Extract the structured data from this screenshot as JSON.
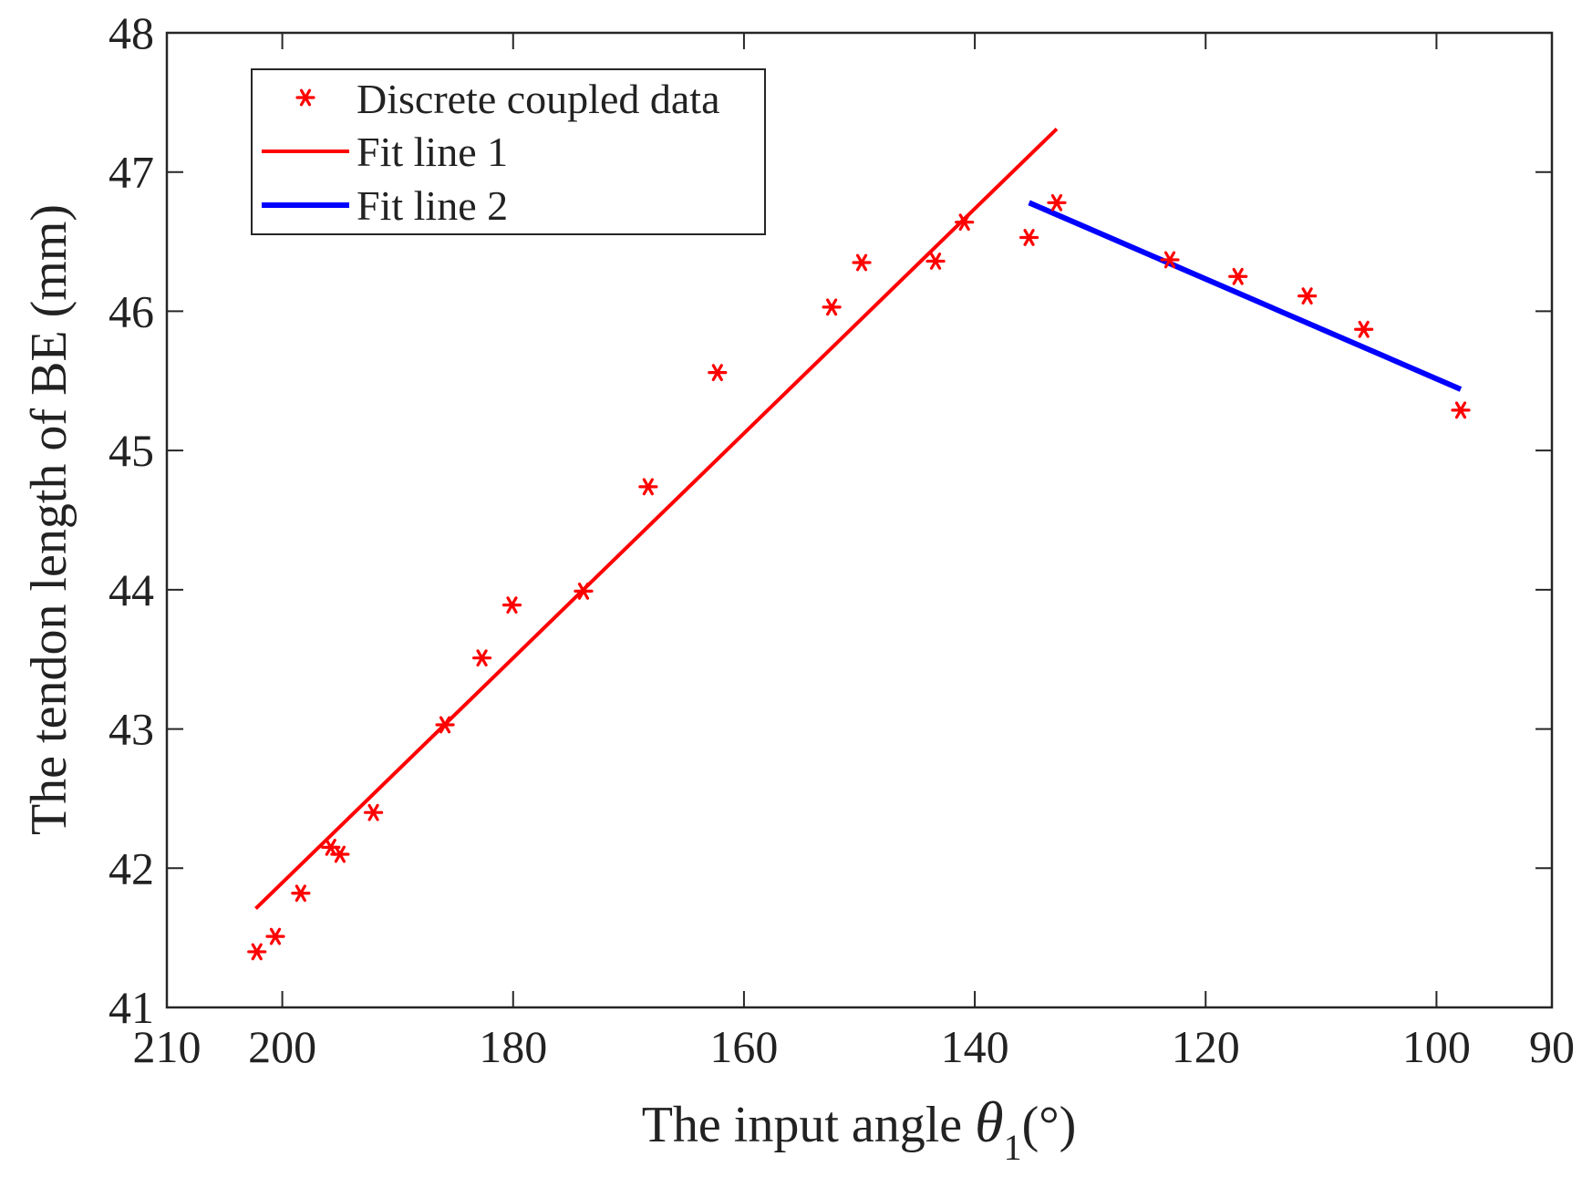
{
  "chart_data": {
    "type": "scatter",
    "title": "",
    "xlabel": {
      "prefix": "The input angle ",
      "symbol": "θ",
      "subscript": "1",
      "suffix": "(°)"
    },
    "ylabel": "The tendon length of BE (mm)",
    "xlim": [
      210,
      90
    ],
    "ylim": [
      41,
      48
    ],
    "x_reversed": true,
    "xticks": [
      210,
      200,
      180,
      160,
      140,
      120,
      100,
      90
    ],
    "xtick_labels": [
      "210",
      "200",
      "180",
      "160",
      "140",
      "120",
      "100",
      "90"
    ],
    "yticks": [
      41,
      42,
      43,
      44,
      45,
      46,
      47,
      48
    ],
    "ytick_labels": [
      "41",
      "42",
      "43",
      "44",
      "45",
      "46",
      "47",
      "48"
    ],
    "grid": false,
    "legend": {
      "position": "top-left",
      "entries": [
        "Discrete coupled data",
        "Fit line 1",
        "Fit line 2"
      ]
    },
    "series": [
      {
        "name": "Discrete coupled data",
        "kind": "scatter",
        "marker": "asterisk",
        "color": "#ff0000",
        "points": [
          [
            202.2,
            41.4
          ],
          [
            200.6,
            41.51
          ],
          [
            198.4,
            41.82
          ],
          [
            195.8,
            42.15
          ],
          [
            195.0,
            42.1
          ],
          [
            192.1,
            42.4
          ],
          [
            185.9,
            43.03
          ],
          [
            182.7,
            43.51
          ],
          [
            180.1,
            43.89
          ],
          [
            173.9,
            43.99
          ],
          [
            168.3,
            44.74
          ],
          [
            162.3,
            45.56
          ],
          [
            152.4,
            46.03
          ],
          [
            149.8,
            46.35
          ],
          [
            143.4,
            46.36
          ],
          [
            140.9,
            46.64
          ],
          [
            135.3,
            46.53
          ],
          [
            132.9,
            46.78
          ],
          [
            123.1,
            46.37
          ],
          [
            117.2,
            46.25
          ],
          [
            111.2,
            46.11
          ],
          [
            106.3,
            45.87
          ],
          [
            97.9,
            45.29
          ]
        ]
      },
      {
        "name": "Fit line 1",
        "kind": "line",
        "color": "#ff0000",
        "points": [
          [
            202.3,
            41.71
          ],
          [
            132.9,
            47.31
          ]
        ]
      },
      {
        "name": "Fit line 2",
        "kind": "line",
        "color": "#0000ff",
        "points": [
          [
            135.3,
            46.78
          ],
          [
            97.9,
            45.44
          ]
        ]
      }
    ]
  }
}
